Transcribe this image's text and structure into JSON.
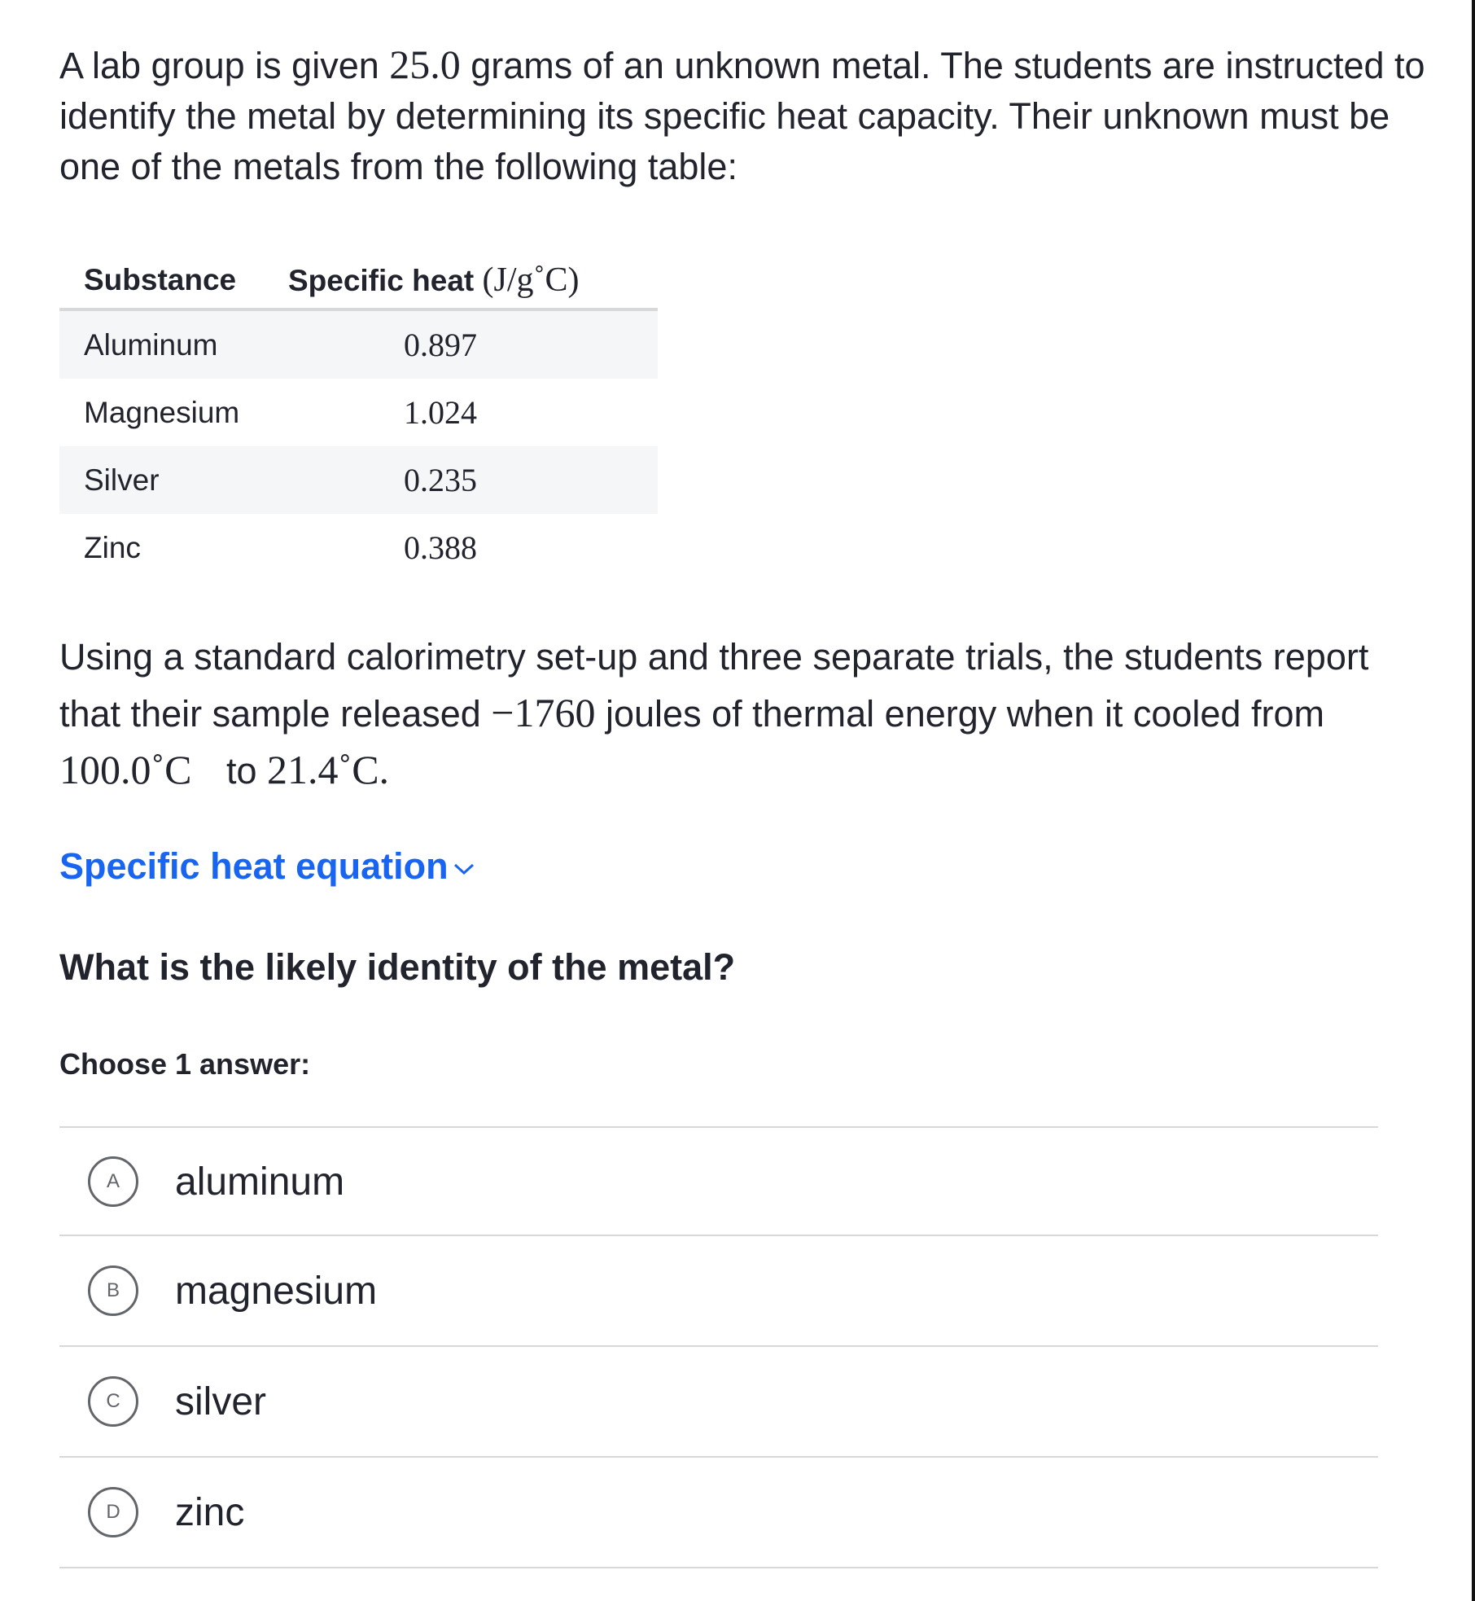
{
  "intro": {
    "t1": "A lab group is given ",
    "mass": "25.0",
    "t2": " grams of an unknown metal. The students are instructed to identify the metal by determining its specific heat capacity. Their unknown must be one of the metals from the following table:"
  },
  "table": {
    "headers": [
      "Substance",
      "Specific heat",
      "(J/g˚C)"
    ],
    "rows": [
      {
        "substance": "Aluminum",
        "value": "0.897"
      },
      {
        "substance": "Magnesium",
        "value": "1.024"
      },
      {
        "substance": "Silver",
        "value": "0.235"
      },
      {
        "substance": "Zinc",
        "value": "0.388"
      }
    ]
  },
  "scenario": {
    "t1": "Using a standard calorimetry set-up and three separate trials, the students report that their sample released ",
    "energy": "−1760",
    "t2": " joules of thermal energy when it cooled from ",
    "t_start": "100.0˚C",
    "t3": " to ",
    "t_end": "21.4˚C",
    "t4": "."
  },
  "hint_link": "Specific heat equation",
  "question": "What is the likely identity of the metal?",
  "choose_label": "Choose 1 answer:",
  "choices": [
    {
      "letter": "A",
      "label": "aluminum"
    },
    {
      "letter": "B",
      "label": "magnesium"
    },
    {
      "letter": "C",
      "label": "silver"
    },
    {
      "letter": "D",
      "label": "zinc"
    }
  ],
  "colors": {
    "link": "#1865f2",
    "text": "#21242c"
  }
}
